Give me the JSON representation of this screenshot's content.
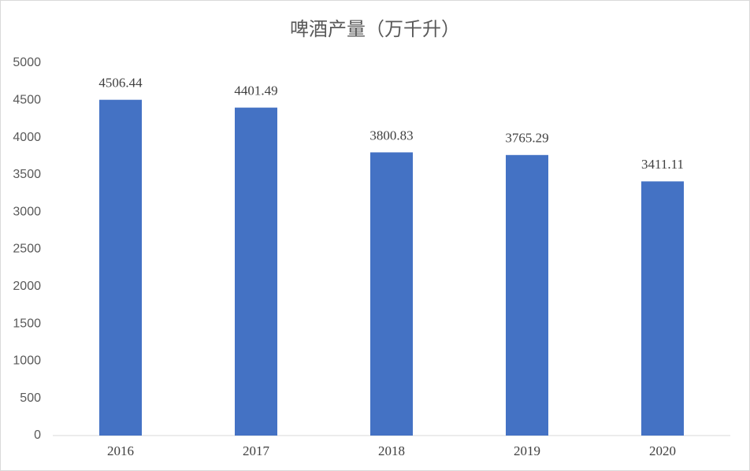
{
  "chart_data": {
    "type": "bar",
    "title": "啤酒产量（万千升）",
    "categories": [
      "2016",
      "2017",
      "2018",
      "2019",
      "2020"
    ],
    "values": [
      4506.44,
      4401.49,
      3800.83,
      3765.29,
      3411.11
    ],
    "color": "#4472c4",
    "ylim": [
      0,
      5000
    ],
    "yticks": [
      0,
      500,
      1000,
      1500,
      2000,
      2500,
      3000,
      3500,
      4000,
      4500,
      5000
    ],
    "grid": false
  }
}
